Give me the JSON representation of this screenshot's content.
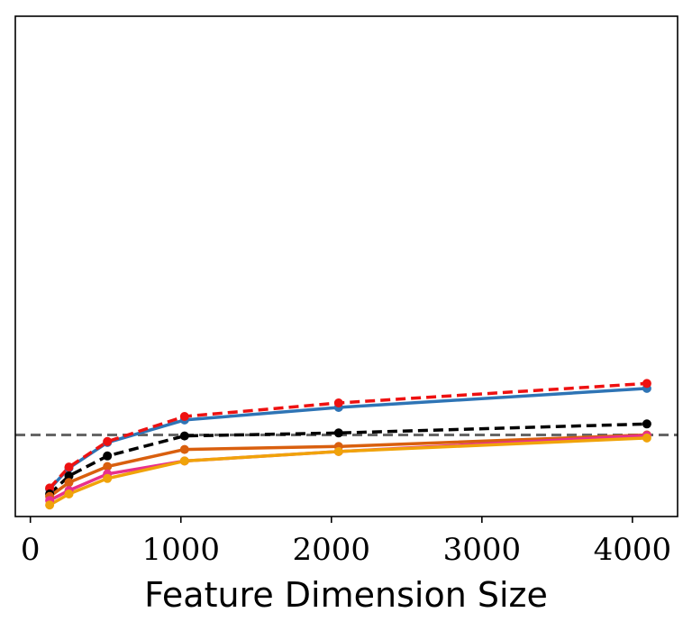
{
  "chart_data": {
    "type": "line",
    "title": "",
    "xlabel": "Feature Dimension Size",
    "ylabel": "",
    "xlim": [
      -100,
      4300
    ],
    "ylim": [
      0,
      1
    ],
    "xticks": [
      0,
      1000,
      2000,
      3000,
      4000
    ],
    "xtick_labels": [
      "0",
      "1000",
      "2000",
      "3000",
      "4000"
    ],
    "grid": false,
    "legend": "none",
    "reference_line": {
      "y": 0.163,
      "style": "dashed",
      "color": "#666666"
    },
    "x": [
      128,
      256,
      512,
      1024,
      2048,
      4096
    ],
    "series": [
      {
        "name": "blue",
        "color": "#2e74b5",
        "style": "solid",
        "values": [
          0.055,
          0.097,
          0.148,
          0.193,
          0.218,
          0.256
        ]
      },
      {
        "name": "red",
        "color": "#ee1111",
        "style": "dashed",
        "values": [
          0.057,
          0.099,
          0.15,
          0.2,
          0.227,
          0.266
        ]
      },
      {
        "name": "black",
        "color": "#000000",
        "style": "dashed",
        "values": [
          0.045,
          0.081,
          0.121,
          0.161,
          0.167,
          0.185
        ]
      },
      {
        "name": "dark-orange",
        "color": "#d95f0e",
        "style": "solid",
        "values": [
          0.04,
          0.068,
          0.1,
          0.134,
          0.14,
          0.163
        ]
      },
      {
        "name": "pink",
        "color": "#e8308c",
        "style": "solid",
        "values": [
          0.032,
          0.052,
          0.085,
          0.111,
          0.13,
          0.162
        ]
      },
      {
        "name": "yellow-orange",
        "color": "#f0a30a",
        "style": "solid",
        "values": [
          0.023,
          0.045,
          0.076,
          0.111,
          0.13,
          0.157
        ]
      }
    ]
  }
}
